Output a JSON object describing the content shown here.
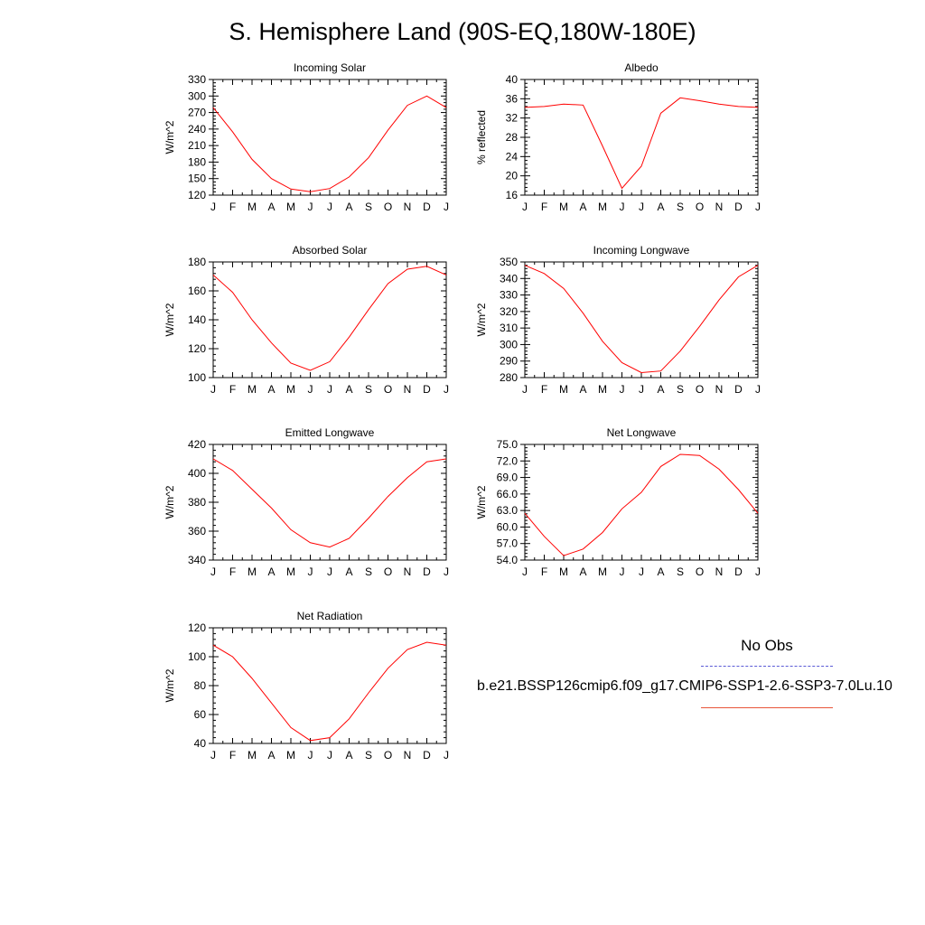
{
  "page": {
    "title": "S. Hemisphere Land (90S-EQ,180W-180E)"
  },
  "legend": {
    "obs_label": "No Obs",
    "obs_color": "#5a5ad6",
    "case_label": "b.e21.BSSP126cmip6.f09_g17.CMIP6-SSP1-2.6-SSP3-7.0Lu.10",
    "case_color": "#ff0000"
  },
  "chart_data": [
    {
      "type": "line",
      "title": "Incoming Solar",
      "ylabel": "W/m^2",
      "x": [
        "J",
        "F",
        "M",
        "A",
        "M",
        "J",
        "J",
        "A",
        "S",
        "O",
        "N",
        "D",
        "J"
      ],
      "ylim": [
        120,
        330
      ],
      "yticks": [
        "120",
        "150",
        "180",
        "210",
        "240",
        "270",
        "300",
        "330"
      ],
      "series": [
        {
          "values": [
            279,
            235,
            185,
            150,
            131,
            126,
            132,
            153,
            188,
            238,
            283,
            300,
            279
          ],
          "color": "#ff0000"
        }
      ]
    },
    {
      "type": "line",
      "title": "Albedo",
      "ylabel": "% reflected",
      "x": [
        "J",
        "F",
        "M",
        "A",
        "M",
        "J",
        "J",
        "A",
        "S",
        "O",
        "N",
        "D",
        "J"
      ],
      "ylim": [
        16,
        40
      ],
      "yticks": [
        "16",
        "20",
        "24",
        "28",
        "32",
        "36",
        "40"
      ],
      "series": [
        {
          "values": [
            34.2,
            34.4,
            34.9,
            34.7,
            26.2,
            17.4,
            22.0,
            33.0,
            36.2,
            35.6,
            34.9,
            34.4,
            34.2
          ],
          "color": "#ff0000"
        }
      ]
    },
    {
      "type": "line",
      "title": "Absorbed Solar",
      "ylabel": "W/m^2",
      "x": [
        "J",
        "F",
        "M",
        "A",
        "M",
        "J",
        "J",
        "A",
        "S",
        "O",
        "N",
        "D",
        "J"
      ],
      "ylim": [
        100,
        180
      ],
      "yticks": [
        "100",
        "120",
        "140",
        "160",
        "180"
      ],
      "series": [
        {
          "values": [
            171,
            159,
            140,
            124,
            110,
            105,
            111,
            128,
            147,
            165,
            175,
            177,
            171
          ],
          "color": "#ff0000"
        }
      ]
    },
    {
      "type": "line",
      "title": "Incoming Longwave",
      "ylabel": "W/m^2",
      "x": [
        "J",
        "F",
        "M",
        "A",
        "M",
        "J",
        "J",
        "A",
        "S",
        "O",
        "N",
        "D",
        "J"
      ],
      "ylim": [
        280,
        350
      ],
      "yticks": [
        "280",
        "290",
        "300",
        "310",
        "320",
        "330",
        "340",
        "350"
      ],
      "series": [
        {
          "values": [
            348,
            343,
            334,
            319,
            302,
            289,
            283,
            284,
            296,
            311,
            327,
            341,
            348
          ],
          "color": "#ff0000"
        }
      ]
    },
    {
      "type": "line",
      "title": "Emitted Longwave",
      "ylabel": "W/m^2",
      "x": [
        "J",
        "F",
        "M",
        "A",
        "M",
        "J",
        "J",
        "A",
        "S",
        "O",
        "N",
        "D",
        "J"
      ],
      "ylim": [
        340,
        420
      ],
      "yticks": [
        "340",
        "360",
        "380",
        "400",
        "420"
      ],
      "series": [
        {
          "values": [
            410,
            402,
            389,
            376,
            361,
            352,
            349,
            355,
            369,
            384,
            397,
            408,
            410
          ],
          "color": "#ff0000"
        }
      ]
    },
    {
      "type": "line",
      "title": "Net Longwave",
      "ylabel": "W/m^2",
      "x": [
        "J",
        "F",
        "M",
        "A",
        "M",
        "J",
        "J",
        "A",
        "S",
        "O",
        "N",
        "D",
        "J"
      ],
      "ylim": [
        54,
        75
      ],
      "yticks": [
        "54.0",
        "57.0",
        "60.0",
        "63.0",
        "66.0",
        "69.0",
        "72.0",
        "75.0"
      ],
      "series": [
        {
          "values": [
            62.5,
            58.3,
            54.8,
            56.0,
            59.0,
            63.3,
            66.3,
            71.0,
            73.2,
            73.0,
            70.5,
            66.8,
            62.5
          ],
          "color": "#ff0000"
        }
      ]
    },
    {
      "type": "line",
      "title": "Net Radiation",
      "ylabel": "W/m^2",
      "x": [
        "J",
        "F",
        "M",
        "A",
        "M",
        "J",
        "J",
        "A",
        "S",
        "O",
        "N",
        "D",
        "J"
      ],
      "ylim": [
        40,
        120
      ],
      "yticks": [
        "40",
        "60",
        "80",
        "100",
        "120"
      ],
      "series": [
        {
          "values": [
            108,
            100,
            85,
            68,
            51,
            42,
            44,
            57,
            75,
            92,
            105,
            110,
            108
          ],
          "color": "#ff0000"
        }
      ]
    }
  ]
}
